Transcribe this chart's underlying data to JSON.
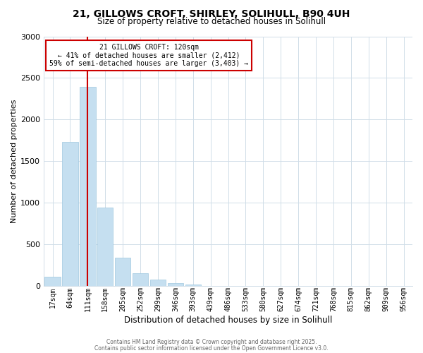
{
  "title_line1": "21, GILLOWS CROFT, SHIRLEY, SOLIHULL, B90 4UH",
  "title_line2": "Size of property relative to detached houses in Solihull",
  "xlabel": "Distribution of detached houses by size in Solihull",
  "ylabel": "Number of detached properties",
  "bin_labels": [
    "17sqm",
    "64sqm",
    "111sqm",
    "158sqm",
    "205sqm",
    "252sqm",
    "299sqm",
    "346sqm",
    "393sqm",
    "439sqm",
    "486sqm",
    "533sqm",
    "580sqm",
    "627sqm",
    "674sqm",
    "721sqm",
    "768sqm",
    "815sqm",
    "862sqm",
    "909sqm",
    "956sqm"
  ],
  "bar_values": [
    110,
    1730,
    2390,
    940,
    340,
    155,
    75,
    35,
    15,
    0,
    0,
    0,
    0,
    0,
    0,
    0,
    0,
    0,
    0,
    0,
    0
  ],
  "bar_color": "#c5dff0",
  "bar_edge_color": "#a0c8e0",
  "grid_color": "#d0dde8",
  "vline_color": "#cc0000",
  "annotation_title": "21 GILLOWS CROFT: 120sqm",
  "annotation_line1": "← 41% of detached houses are smaller (2,412)",
  "annotation_line2": "59% of semi-detached houses are larger (3,403) →",
  "annotation_box_color": "#ffffff",
  "annotation_box_edge": "#cc0000",
  "ylim": [
    0,
    3000
  ],
  "yticks": [
    0,
    500,
    1000,
    1500,
    2000,
    2500,
    3000
  ],
  "footer1": "Contains HM Land Registry data © Crown copyright and database right 2025.",
  "footer2": "Contains public sector information licensed under the Open Government Licence v3.0.",
  "bg_color": "#ffffff"
}
